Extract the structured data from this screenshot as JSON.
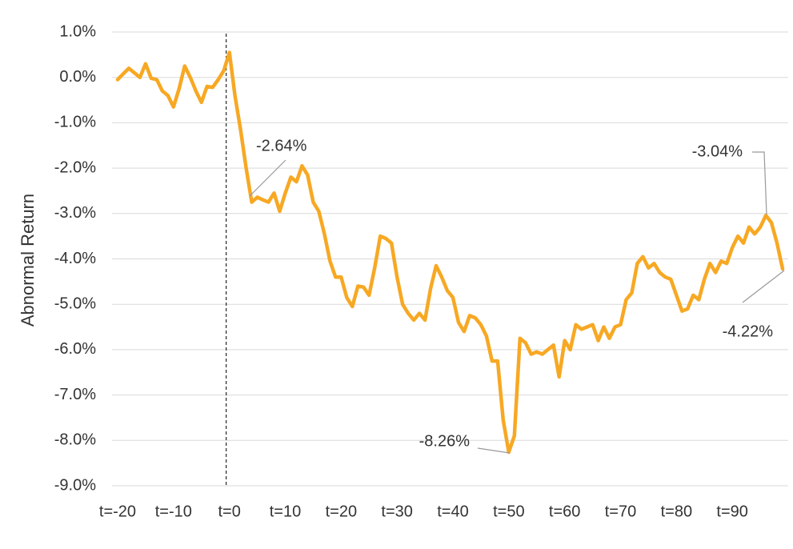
{
  "chart_data": {
    "type": "line",
    "y_label": "Abnormal Return",
    "x": [
      -20,
      -19,
      -18,
      -17,
      -16,
      -15,
      -14,
      -13,
      -12,
      -11,
      -10,
      -9,
      -8,
      -7,
      -6,
      -5,
      -4,
      -3,
      -2,
      -1,
      0,
      1,
      2,
      3,
      4,
      5,
      6,
      7,
      8,
      9,
      10,
      11,
      12,
      13,
      14,
      15,
      16,
      17,
      18,
      19,
      20,
      21,
      22,
      23,
      24,
      25,
      26,
      27,
      28,
      29,
      30,
      31,
      32,
      33,
      34,
      35,
      36,
      37,
      38,
      39,
      40,
      41,
      42,
      43,
      44,
      45,
      46,
      47,
      48,
      49,
      50,
      51,
      52,
      53,
      54,
      55,
      56,
      57,
      58,
      59,
      60,
      61,
      62,
      63,
      64,
      65,
      66,
      67,
      68,
      69,
      70,
      71,
      72,
      73,
      74,
      75,
      76,
      77,
      78,
      79,
      80,
      81,
      82,
      83,
      84,
      85,
      86,
      87,
      88,
      89,
      90,
      91,
      92,
      93,
      94,
      95,
      96,
      97,
      98,
      99
    ],
    "series": [
      {
        "name": "Abnormal Return",
        "color": "#f7a823",
        "values": [
          -0.05,
          0.08,
          0.2,
          0.1,
          0.0,
          0.3,
          -0.02,
          -0.05,
          -0.3,
          -0.4,
          -0.65,
          -0.25,
          0.25,
          0.0,
          -0.3,
          -0.55,
          -0.2,
          -0.22,
          -0.05,
          0.15,
          0.55,
          -0.4,
          -1.15,
          -2.0,
          -2.75,
          -2.64,
          -2.7,
          -2.75,
          -2.55,
          -2.95,
          -2.55,
          -2.2,
          -2.3,
          -1.95,
          -2.15,
          -2.75,
          -2.95,
          -3.45,
          -4.05,
          -4.4,
          -4.4,
          -4.85,
          -5.05,
          -4.6,
          -4.62,
          -4.8,
          -4.2,
          -3.5,
          -3.55,
          -3.65,
          -4.4,
          -5.0,
          -5.2,
          -5.35,
          -5.2,
          -5.35,
          -4.65,
          -4.15,
          -4.4,
          -4.7,
          -4.85,
          -5.4,
          -5.6,
          -5.25,
          -5.3,
          -5.45,
          -5.7,
          -6.25,
          -6.25,
          -7.55,
          -8.26,
          -7.9,
          -5.75,
          -5.85,
          -6.1,
          -6.05,
          -6.1,
          -6.0,
          -5.9,
          -6.6,
          -5.8,
          -6.0,
          -5.45,
          -5.55,
          -5.5,
          -5.45,
          -5.8,
          -5.5,
          -5.75,
          -5.5,
          -5.45,
          -4.9,
          -4.75,
          -4.1,
          -3.95,
          -4.2,
          -4.1,
          -4.3,
          -4.4,
          -4.45,
          -4.8,
          -5.15,
          -5.1,
          -4.8,
          -4.9,
          -4.45,
          -4.1,
          -4.3,
          -4.05,
          -4.1,
          -3.75,
          -3.5,
          -3.65,
          -3.3,
          -3.45,
          -3.3,
          -3.04,
          -3.2,
          -3.65,
          -4.22
        ]
      }
    ],
    "annotations": [
      "-2.64%",
      "-8.26%",
      "-3.04%",
      "-4.22%"
    ],
    "xlim": [
      -21,
      100
    ],
    "xticks": [
      {
        "value": -20,
        "label": "t=-20"
      },
      {
        "value": -10,
        "label": "t=-10"
      },
      {
        "value": 0,
        "label": "t=0"
      },
      {
        "value": 10,
        "label": "t=10"
      },
      {
        "value": 20,
        "label": "t=20"
      },
      {
        "value": 30,
        "label": "t=30"
      },
      {
        "value": 40,
        "label": "t=40"
      },
      {
        "value": 50,
        "label": "t=50"
      },
      {
        "value": 60,
        "label": "t=60"
      },
      {
        "value": 70,
        "label": "t=70"
      },
      {
        "value": 80,
        "label": "t=80"
      },
      {
        "value": 90,
        "label": "t=90"
      }
    ],
    "ylim": [
      -9,
      1
    ],
    "yticks": [
      {
        "value": 1,
        "label": "1.0%"
      },
      {
        "value": 0,
        "label": "0.0%"
      },
      {
        "value": -1,
        "label": "-1.0%"
      },
      {
        "value": -2,
        "label": "-2.0%"
      },
      {
        "value": -3,
        "label": "-3.0%"
      },
      {
        "value": -4,
        "label": "-4.0%"
      },
      {
        "value": -5,
        "label": "-5.0%"
      },
      {
        "value": -6,
        "label": "-6.0%"
      },
      {
        "value": -7,
        "label": "-7.0%"
      },
      {
        "value": -8,
        "label": "-8.0%"
      },
      {
        "value": -9,
        "label": "-9.0%"
      }
    ],
    "grid": true
  }
}
